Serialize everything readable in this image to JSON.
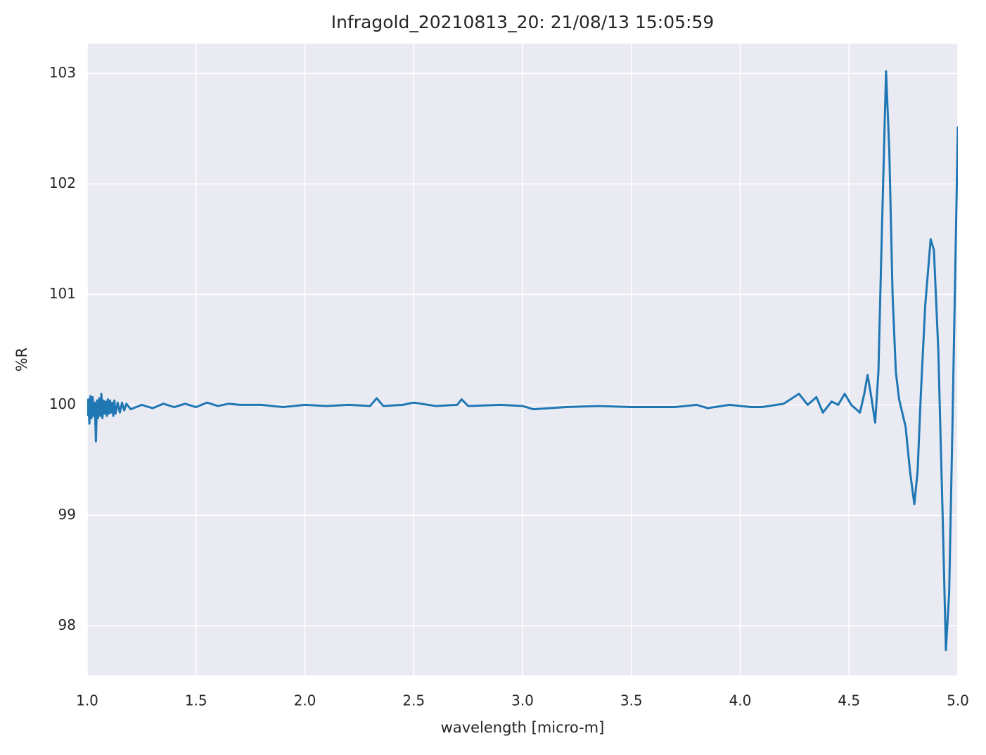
{
  "chart_data": {
    "type": "line",
    "title": "Infragold_20210813_20:  21/08/13 15:05:59",
    "x_label": "wavelength [micro-m]",
    "y_label": "%R",
    "xlim": [
      1,
      5
    ],
    "ylim": [
      97.55,
      103.27
    ],
    "xticks": [
      {
        "value": 1,
        "label": "1.0"
      },
      1.5,
      {
        "value": 2,
        "label": "2.0"
      },
      2.5,
      {
        "value": 3,
        "label": "3.0"
      },
      3.5,
      {
        "value": 4,
        "label": "4.0"
      },
      4.5,
      {
        "value": 5,
        "label": "5.0"
      }
    ],
    "yticks": [
      98,
      99,
      100,
      101,
      102,
      103
    ],
    "grid": true,
    "x": [
      1.0,
      1.005,
      1.01,
      1.015,
      1.02,
      1.025,
      1.03,
      1.035,
      1.04,
      1.045,
      1.05,
      1.055,
      1.06,
      1.065,
      1.07,
      1.075,
      1.08,
      1.085,
      1.09,
      1.095,
      1.1,
      1.105,
      1.11,
      1.115,
      1.12,
      1.125,
      1.13,
      1.14,
      1.15,
      1.16,
      1.17,
      1.18,
      1.2,
      1.25,
      1.3,
      1.35,
      1.4,
      1.45,
      1.5,
      1.55,
      1.6,
      1.65,
      1.7,
      1.8,
      1.9,
      2.0,
      2.1,
      2.2,
      2.3,
      2.33,
      2.36,
      2.45,
      2.5,
      2.6,
      2.7,
      2.72,
      2.75,
      2.9,
      3.0,
      3.05,
      3.2,
      3.35,
      3.5,
      3.7,
      3.8,
      3.85,
      3.95,
      4.05,
      4.1,
      4.2,
      4.27,
      4.31,
      4.35,
      4.38,
      4.42,
      4.45,
      4.48,
      4.51,
      4.55,
      4.57,
      4.585,
      4.6,
      4.62,
      4.635,
      4.65,
      4.67,
      4.685,
      4.7,
      4.715,
      4.73,
      4.76,
      4.78,
      4.8,
      4.815,
      4.83,
      4.85,
      4.875,
      4.89,
      4.91,
      4.93,
      4.945,
      4.96,
      4.975,
      5.0
    ],
    "series": [
      {
        "color": "#1f77b4",
        "values": [
          99.9,
          100.05,
          99.83,
          100.08,
          99.88,
          100.07,
          99.9,
          100.02,
          99.67,
          100.04,
          99.88,
          100.06,
          99.9,
          100.1,
          99.88,
          100.04,
          99.92,
          100.03,
          99.9,
          100.05,
          99.92,
          100.04,
          99.93,
          100.02,
          99.9,
          100.04,
          99.92,
          100.02,
          99.93,
          100.02,
          99.95,
          100.01,
          99.96,
          100.0,
          99.97,
          100.01,
          99.98,
          100.01,
          99.98,
          100.02,
          99.99,
          100.01,
          100.0,
          100.0,
          99.98,
          100.0,
          99.99,
          100.0,
          99.99,
          100.06,
          99.99,
          100.0,
          100.02,
          99.99,
          100.0,
          100.05,
          99.99,
          100.0,
          99.99,
          99.96,
          99.98,
          99.99,
          99.98,
          99.98,
          100.0,
          99.97,
          100.0,
          99.98,
          99.98,
          100.01,
          100.1,
          100.0,
          100.07,
          99.93,
          100.03,
          100.0,
          100.1,
          100.0,
          99.93,
          100.1,
          100.27,
          100.1,
          99.84,
          100.3,
          101.5,
          103.02,
          102.3,
          101.0,
          100.3,
          100.05,
          99.8,
          99.4,
          99.1,
          99.4,
          100.1,
          100.9,
          101.5,
          101.4,
          100.5,
          99.0,
          97.78,
          98.3,
          99.8,
          102.52
        ]
      }
    ]
  }
}
